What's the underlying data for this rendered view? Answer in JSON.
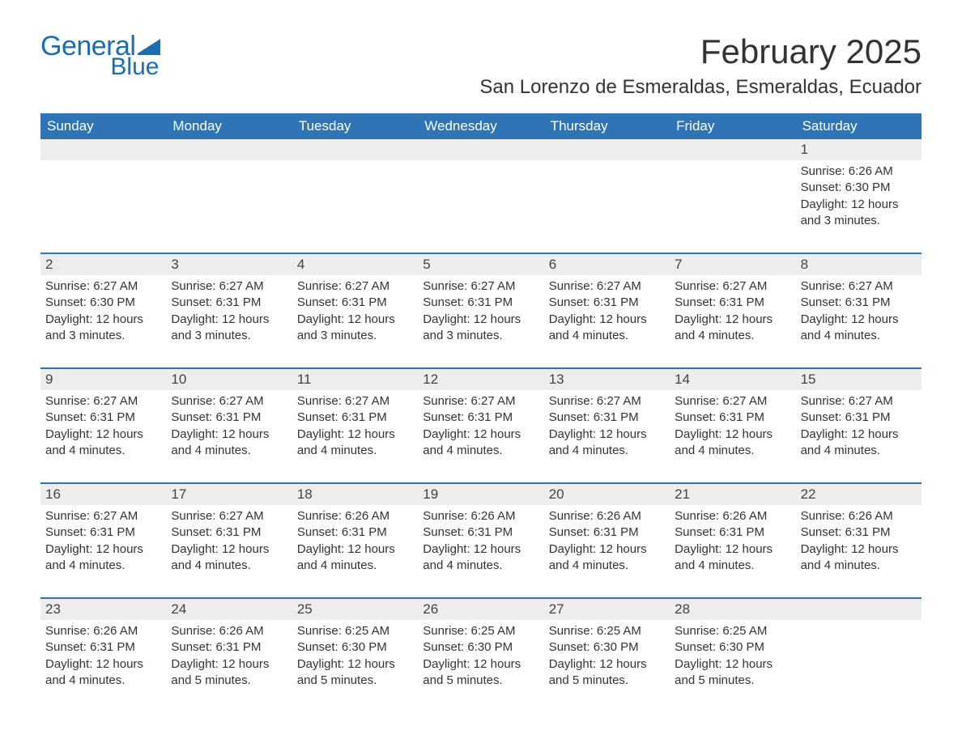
{
  "brand": {
    "name_part1": "General",
    "name_part2": "Blue",
    "color": "#1a6db0"
  },
  "header": {
    "month_title": "February 2025",
    "location": "San Lorenzo de Esmeraldas, Esmeraldas, Ecuador"
  },
  "style": {
    "header_bg": "#2f75b5",
    "header_text": "#ffffff",
    "row_divider": "#2f75b5",
    "daynum_bg": "#ededed",
    "page_bg": "#ffffff",
    "text_color": "#333333"
  },
  "weekdays": [
    "Sunday",
    "Monday",
    "Tuesday",
    "Wednesday",
    "Thursday",
    "Friday",
    "Saturday"
  ],
  "weeks": [
    [
      {
        "empty": true
      },
      {
        "empty": true
      },
      {
        "empty": true
      },
      {
        "empty": true
      },
      {
        "empty": true
      },
      {
        "empty": true
      },
      {
        "day": "1",
        "sunrise": "Sunrise: 6:26 AM",
        "sunset": "Sunset: 6:30 PM",
        "daylight1": "Daylight: 12 hours",
        "daylight2": "and 3 minutes."
      }
    ],
    [
      {
        "day": "2",
        "sunrise": "Sunrise: 6:27 AM",
        "sunset": "Sunset: 6:30 PM",
        "daylight1": "Daylight: 12 hours",
        "daylight2": "and 3 minutes."
      },
      {
        "day": "3",
        "sunrise": "Sunrise: 6:27 AM",
        "sunset": "Sunset: 6:31 PM",
        "daylight1": "Daylight: 12 hours",
        "daylight2": "and 3 minutes."
      },
      {
        "day": "4",
        "sunrise": "Sunrise: 6:27 AM",
        "sunset": "Sunset: 6:31 PM",
        "daylight1": "Daylight: 12 hours",
        "daylight2": "and 3 minutes."
      },
      {
        "day": "5",
        "sunrise": "Sunrise: 6:27 AM",
        "sunset": "Sunset: 6:31 PM",
        "daylight1": "Daylight: 12 hours",
        "daylight2": "and 3 minutes."
      },
      {
        "day": "6",
        "sunrise": "Sunrise: 6:27 AM",
        "sunset": "Sunset: 6:31 PM",
        "daylight1": "Daylight: 12 hours",
        "daylight2": "and 4 minutes."
      },
      {
        "day": "7",
        "sunrise": "Sunrise: 6:27 AM",
        "sunset": "Sunset: 6:31 PM",
        "daylight1": "Daylight: 12 hours",
        "daylight2": "and 4 minutes."
      },
      {
        "day": "8",
        "sunrise": "Sunrise: 6:27 AM",
        "sunset": "Sunset: 6:31 PM",
        "daylight1": "Daylight: 12 hours",
        "daylight2": "and 4 minutes."
      }
    ],
    [
      {
        "day": "9",
        "sunrise": "Sunrise: 6:27 AM",
        "sunset": "Sunset: 6:31 PM",
        "daylight1": "Daylight: 12 hours",
        "daylight2": "and 4 minutes."
      },
      {
        "day": "10",
        "sunrise": "Sunrise: 6:27 AM",
        "sunset": "Sunset: 6:31 PM",
        "daylight1": "Daylight: 12 hours",
        "daylight2": "and 4 minutes."
      },
      {
        "day": "11",
        "sunrise": "Sunrise: 6:27 AM",
        "sunset": "Sunset: 6:31 PM",
        "daylight1": "Daylight: 12 hours",
        "daylight2": "and 4 minutes."
      },
      {
        "day": "12",
        "sunrise": "Sunrise: 6:27 AM",
        "sunset": "Sunset: 6:31 PM",
        "daylight1": "Daylight: 12 hours",
        "daylight2": "and 4 minutes."
      },
      {
        "day": "13",
        "sunrise": "Sunrise: 6:27 AM",
        "sunset": "Sunset: 6:31 PM",
        "daylight1": "Daylight: 12 hours",
        "daylight2": "and 4 minutes."
      },
      {
        "day": "14",
        "sunrise": "Sunrise: 6:27 AM",
        "sunset": "Sunset: 6:31 PM",
        "daylight1": "Daylight: 12 hours",
        "daylight2": "and 4 minutes."
      },
      {
        "day": "15",
        "sunrise": "Sunrise: 6:27 AM",
        "sunset": "Sunset: 6:31 PM",
        "daylight1": "Daylight: 12 hours",
        "daylight2": "and 4 minutes."
      }
    ],
    [
      {
        "day": "16",
        "sunrise": "Sunrise: 6:27 AM",
        "sunset": "Sunset: 6:31 PM",
        "daylight1": "Daylight: 12 hours",
        "daylight2": "and 4 minutes."
      },
      {
        "day": "17",
        "sunrise": "Sunrise: 6:27 AM",
        "sunset": "Sunset: 6:31 PM",
        "daylight1": "Daylight: 12 hours",
        "daylight2": "and 4 minutes."
      },
      {
        "day": "18",
        "sunrise": "Sunrise: 6:26 AM",
        "sunset": "Sunset: 6:31 PM",
        "daylight1": "Daylight: 12 hours",
        "daylight2": "and 4 minutes."
      },
      {
        "day": "19",
        "sunrise": "Sunrise: 6:26 AM",
        "sunset": "Sunset: 6:31 PM",
        "daylight1": "Daylight: 12 hours",
        "daylight2": "and 4 minutes."
      },
      {
        "day": "20",
        "sunrise": "Sunrise: 6:26 AM",
        "sunset": "Sunset: 6:31 PM",
        "daylight1": "Daylight: 12 hours",
        "daylight2": "and 4 minutes."
      },
      {
        "day": "21",
        "sunrise": "Sunrise: 6:26 AM",
        "sunset": "Sunset: 6:31 PM",
        "daylight1": "Daylight: 12 hours",
        "daylight2": "and 4 minutes."
      },
      {
        "day": "22",
        "sunrise": "Sunrise: 6:26 AM",
        "sunset": "Sunset: 6:31 PM",
        "daylight1": "Daylight: 12 hours",
        "daylight2": "and 4 minutes."
      }
    ],
    [
      {
        "day": "23",
        "sunrise": "Sunrise: 6:26 AM",
        "sunset": "Sunset: 6:31 PM",
        "daylight1": "Daylight: 12 hours",
        "daylight2": "and 4 minutes."
      },
      {
        "day": "24",
        "sunrise": "Sunrise: 6:26 AM",
        "sunset": "Sunset: 6:31 PM",
        "daylight1": "Daylight: 12 hours",
        "daylight2": "and 5 minutes."
      },
      {
        "day": "25",
        "sunrise": "Sunrise: 6:25 AM",
        "sunset": "Sunset: 6:30 PM",
        "daylight1": "Daylight: 12 hours",
        "daylight2": "and 5 minutes."
      },
      {
        "day": "26",
        "sunrise": "Sunrise: 6:25 AM",
        "sunset": "Sunset: 6:30 PM",
        "daylight1": "Daylight: 12 hours",
        "daylight2": "and 5 minutes."
      },
      {
        "day": "27",
        "sunrise": "Sunrise: 6:25 AM",
        "sunset": "Sunset: 6:30 PM",
        "daylight1": "Daylight: 12 hours",
        "daylight2": "and 5 minutes."
      },
      {
        "day": "28",
        "sunrise": "Sunrise: 6:25 AM",
        "sunset": "Sunset: 6:30 PM",
        "daylight1": "Daylight: 12 hours",
        "daylight2": "and 5 minutes."
      },
      {
        "empty": true
      }
    ]
  ]
}
